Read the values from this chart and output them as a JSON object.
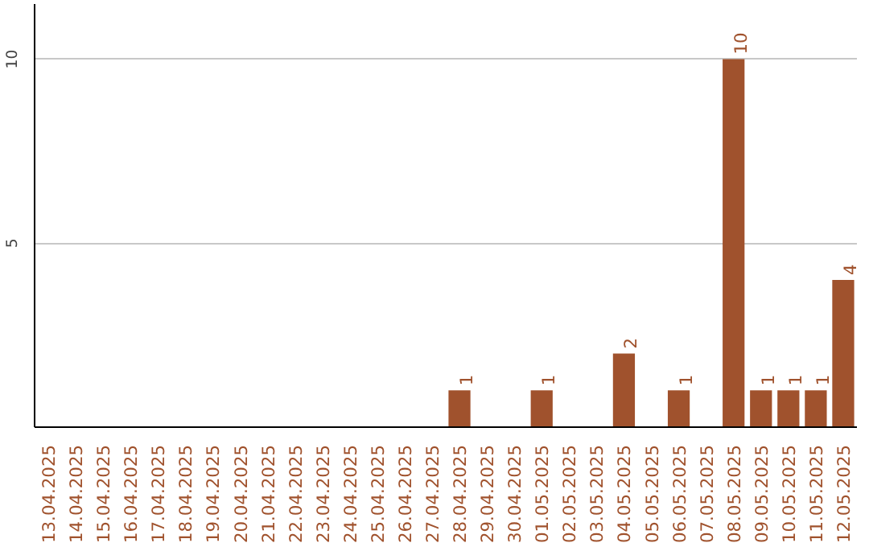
{
  "chart_data": {
    "type": "bar",
    "categories": [
      "13.04.2025",
      "14.04.2025",
      "15.04.2025",
      "16.04.2025",
      "17.04.2025",
      "18.04.2025",
      "19.04.2025",
      "20.04.2025",
      "21.04.2025",
      "22.04.2025",
      "23.04.2025",
      "24.04.2025",
      "25.04.2025",
      "26.04.2025",
      "27.04.2025",
      "28.04.2025",
      "29.04.2025",
      "30.04.2025",
      "01.05.2025",
      "02.05.2025",
      "03.05.2025",
      "04.05.2025",
      "05.05.2025",
      "06.05.2025",
      "07.05.2025",
      "08.05.2025",
      "09.05.2025",
      "10.05.2025",
      "11.05.2025",
      "12.05.2025"
    ],
    "values": [
      0,
      0,
      0,
      0,
      0,
      0,
      0,
      0,
      0,
      0,
      0,
      0,
      0,
      0,
      0,
      1,
      0,
      0,
      1,
      0,
      0,
      2,
      0,
      1,
      0,
      10,
      1,
      1,
      1,
      4
    ],
    "value_labels": [
      null,
      null,
      null,
      null,
      null,
      null,
      null,
      null,
      null,
      null,
      null,
      null,
      null,
      null,
      null,
      "1",
      null,
      null,
      "1",
      null,
      null,
      "2",
      null,
      "1",
      null,
      "10",
      "1",
      "1",
      "1",
      "4"
    ],
    "color": "#a0522d",
    "ylim": [
      0,
      11.5
    ],
    "yticks": [
      5,
      10
    ],
    "grid": "y"
  }
}
